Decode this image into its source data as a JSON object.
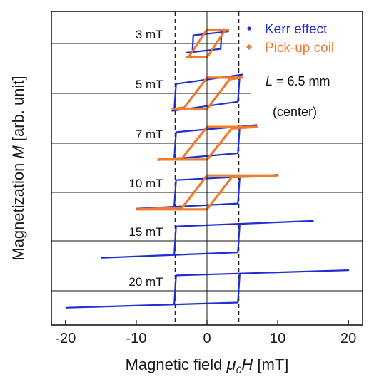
{
  "chart_data": {
    "type": "line",
    "xlabel_prefix": "Magnetic field ",
    "xlabel_symbol": "μ",
    "xlabel_sub": "0",
    "xlabel_var": "H",
    "xlabel_unit": " [mT]",
    "ylabel_prefix": "Magnetization ",
    "ylabel_var": "M",
    "ylabel_unit": " [arb. unit]",
    "xlim": [
      -22,
      22
    ],
    "xticks": [
      -20,
      -10,
      0,
      10,
      20
    ],
    "xtick_labels": [
      "-20",
      "-10",
      "0",
      "10",
      "20"
    ],
    "y_ticks_labels": false,
    "guide_lines_x": [
      -4.5,
      4.5
    ],
    "legend": [
      {
        "name": "Kerr effect",
        "color": "#1f2fd1",
        "marker": "dot"
      },
      {
        "name": "Pick-up coil",
        "color": "#ee7b2e",
        "marker": "diamond"
      }
    ],
    "annotation": {
      "line1": "L = 6.5 mm",
      "line1_var": "L",
      "line1_rest": " = 6.5 mm",
      "line2": "(center)"
    },
    "colors": {
      "kerr": "#1f2fd1",
      "coil": "#ee7b2e",
      "axis": "#1a1a1a",
      "guide": "#222222"
    },
    "loops": [
      {
        "label": "3 mT",
        "amplitude": 3,
        "kerr": {
          "coercive": 2.0,
          "upper": 0.4,
          "lower": -0.4,
          "tilt": 0.35
        },
        "coil": {
          "coercive": 2.5,
          "top": 1.15,
          "bottom": -1.15
        }
      },
      {
        "label": "5 mT",
        "amplitude": 5,
        "kerr": {
          "coercive": 4.5,
          "upper": 0.1,
          "lower": -0.1,
          "tilt": 0.4
        },
        "coil": {
          "coercive": 3.2,
          "top": 1.3,
          "bottom": -1.3
        }
      },
      {
        "label": "7 mT",
        "amplitude": 7,
        "kerr": {
          "coercive": 4.5,
          "upper": 0.1,
          "lower": -0.1,
          "tilt": 0.35
        },
        "coil": {
          "coercive": 3.5,
          "top": 1.35,
          "bottom": -1.35
        }
      },
      {
        "label": "10 mT",
        "amplitude": 10,
        "kerr": {
          "coercive": 4.5,
          "upper": 0.1,
          "lower": -0.15,
          "tilt": 0.3
        },
        "coil": {
          "coercive": 3.5,
          "top": 1.4,
          "bottom": -1.4
        }
      },
      {
        "label": "15 mT",
        "amplitude": 15,
        "kerr": {
          "coercive": 4.5,
          "upper": 0.25,
          "lower": -0.25,
          "tilt": 0.35
        },
        "coil": null
      },
      {
        "label": "20 mT",
        "amplitude": 20,
        "kerr": {
          "coercive": 4.5,
          "upper": 0.3,
          "lower": -0.3,
          "tilt": 0.35
        },
        "coil": null
      }
    ]
  }
}
